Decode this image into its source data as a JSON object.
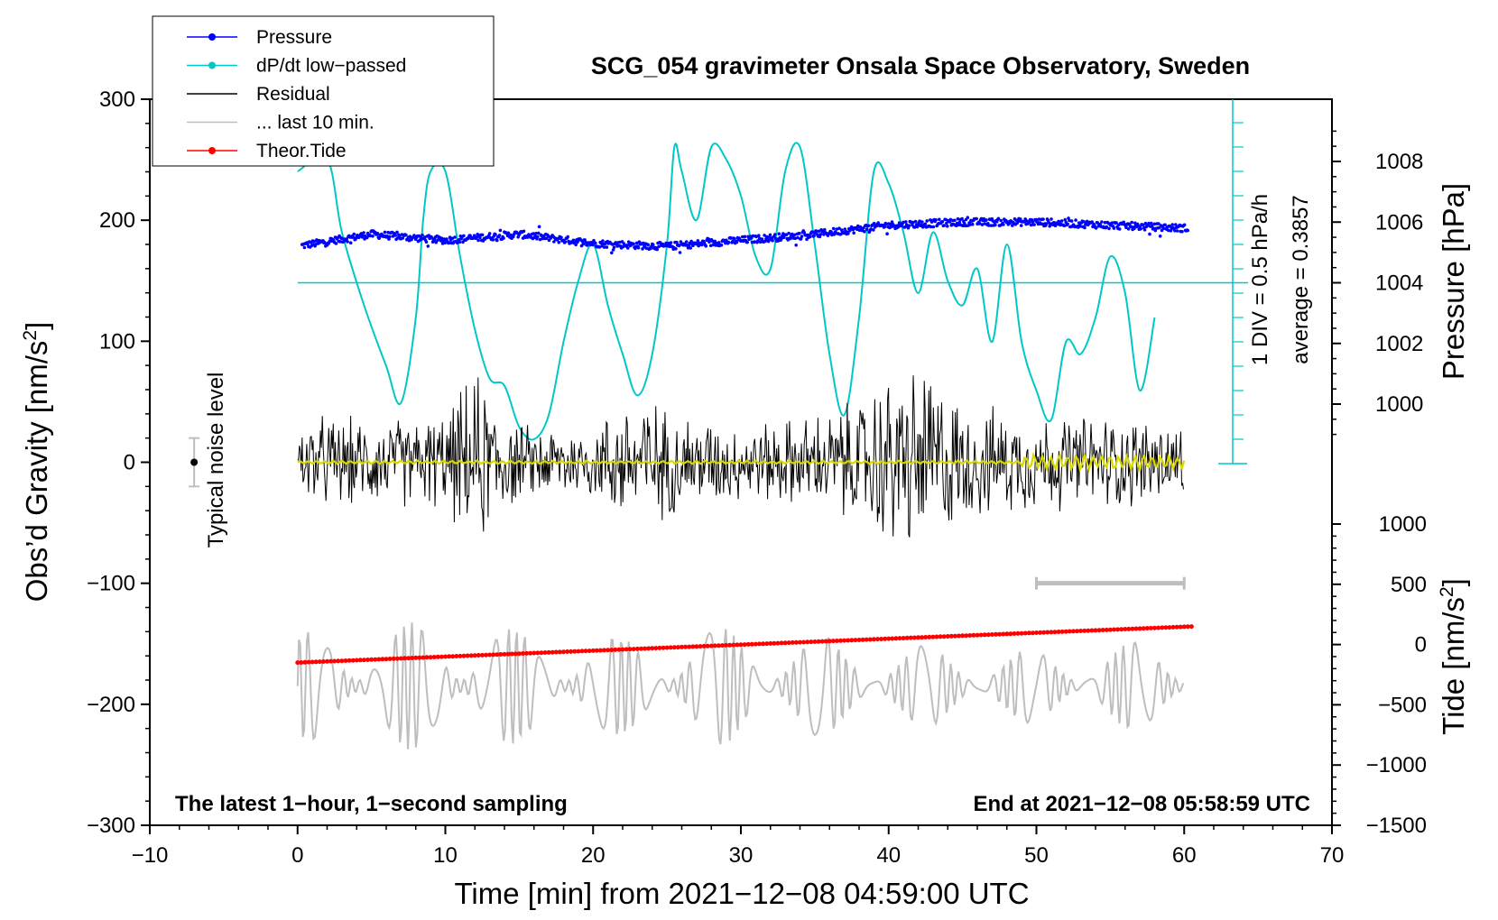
{
  "chart_data": {
    "type": "line",
    "title": "SCG_054 gravimeter Onsala Space Observatory, Sweden",
    "xlabel": "Time [min] from 2021−12−08 04:59:00 UTC",
    "ylabel": "Obs’d Gravity [nm/s²]",
    "xlim": [
      -10,
      70
    ],
    "ylim": [
      -300,
      300
    ],
    "x_ticks": [
      "−10",
      "0",
      "10",
      "20",
      "30",
      "40",
      "50",
      "60",
      "70"
    ],
    "y_ticks": [
      "300",
      "200",
      "100",
      "0",
      "−100",
      "−200",
      "−300"
    ],
    "right_axes": {
      "pressure": {
        "label": "Pressure [hPa]",
        "ticks": [
          "1008",
          "1006",
          "1004",
          "1002",
          "1000"
        ],
        "tick_values": [
          1008,
          1006,
          1004,
          1002,
          1000
        ]
      },
      "tide": {
        "label": "Tide [nm/s²]",
        "ticks": [
          "1000",
          "500",
          "0",
          "−500",
          "−1000",
          "−1500"
        ],
        "tick_values": [
          1000,
          500,
          0,
          -500,
          -1000,
          -1500
        ]
      }
    },
    "dpdt_scale": {
      "div_label": "1 DIV = 0.5 hPa/h",
      "average_label": "average = 0.3857"
    },
    "annotations": {
      "noise": "Typical noise level",
      "bottom_left": "The latest 1−hour, 1−second sampling",
      "bottom_right": "End at 2021−12−08 05:58:59 UTC"
    },
    "legend": [
      {
        "label": "Pressure",
        "color": "#0000ff",
        "marker": true
      },
      {
        "label": "dP/dt low−passed",
        "color": "#00c8c8",
        "marker": true
      },
      {
        "label": "Residual",
        "color": "#000000",
        "marker": false
      },
      {
        "label": "... last 10 min.",
        "color": "#bebebe",
        "marker": false
      },
      {
        "label": "Theor.Tide",
        "color": "#ff0000",
        "marker": true
      }
    ],
    "series": [
      {
        "name": "Pressure",
        "axis": "pressure",
        "unit": "hPa",
        "x": [
          0,
          5,
          10,
          15,
          20,
          25,
          30,
          35,
          40,
          45,
          50,
          55,
          60
        ],
        "values": [
          1005.2,
          1005.6,
          1005.4,
          1005.6,
          1005.3,
          1005.2,
          1005.4,
          1005.6,
          1005.9,
          1006.0,
          1006.0,
          1005.9,
          1005.8
        ]
      },
      {
        "name": "dP/dt low−passed",
        "axis": "dpdt_div",
        "unit": "DIV above zero line",
        "x": [
          0,
          2,
          3,
          4.5,
          6,
          7,
          8,
          8.5,
          9,
          10,
          11,
          12,
          13,
          14,
          15,
          16,
          17,
          18,
          19,
          20,
          21,
          22,
          23,
          24,
          25,
          25.5,
          26,
          27,
          28,
          29,
          30,
          31,
          32,
          33,
          34,
          35,
          36,
          37,
          38,
          39,
          40,
          41,
          42,
          43,
          44,
          45,
          46,
          47,
          48,
          49,
          50,
          51,
          52,
          53,
          54,
          55,
          56,
          57,
          58
        ],
        "values": [
          12,
          12.5,
          9.5,
          6.5,
          4,
          2.5,
          6,
          10,
          12,
          12,
          8.5,
          5.5,
          3.5,
          3.2,
          1.5,
          1,
          2,
          5,
          7.5,
          9,
          6.5,
          4.5,
          2.8,
          4.5,
          9,
          13,
          12,
          10,
          13,
          12.5,
          11,
          8.5,
          8,
          12,
          13,
          9,
          4.5,
          2,
          6,
          12,
          11.5,
          9.5,
          7,
          9.5,
          7.5,
          6.5,
          8,
          5,
          9,
          5,
          3,
          1.8,
          5,
          4.5,
          6,
          8.5,
          7,
          3,
          6
        ]
      },
      {
        "name": "Residual",
        "axis": "gravity",
        "unit": "nm/s²",
        "amplitude_envelope_x": [
          0,
          5,
          10,
          12,
          15,
          20,
          23,
          25,
          30,
          35,
          38,
          40,
          43,
          45,
          50,
          55,
          60
        ],
        "amplitude_envelope": [
          45,
          40,
          45,
          85,
          35,
          35,
          70,
          50,
          35,
          45,
          60,
          85,
          90,
          55,
          45,
          45,
          40
        ]
      },
      {
        "name": "Residual trend",
        "axis": "gravity",
        "unit": "nm/s²",
        "x": [
          0,
          10,
          20,
          30,
          40,
          50,
          55,
          60
        ],
        "values": [
          0,
          0,
          0,
          0,
          0,
          0,
          0,
          0
        ]
      },
      {
        "name": "... last 10 min.",
        "axis": "gravity",
        "unit": "nm/s²",
        "amplitude_envelope_x": [
          0,
          10,
          20,
          30,
          40,
          50,
          60
        ],
        "amplitude_envelope": [
          45,
          55,
          40,
          50,
          35,
          30,
          40
        ]
      },
      {
        "name": "Theor.Tide",
        "axis": "tide",
        "unit": "nm/s²",
        "x": [
          0,
          60.5
        ],
        "values": [
          -150,
          150
        ]
      },
      {
        "name": "Typical noise level",
        "axis": "gravity",
        "unit": "nm/s²",
        "x": [
          -7
        ],
        "values": [
          0
        ],
        "error": 20
      }
    ],
    "last_10_min_marker": {
      "x": [
        50,
        60
      ],
      "value": -100
    }
  }
}
